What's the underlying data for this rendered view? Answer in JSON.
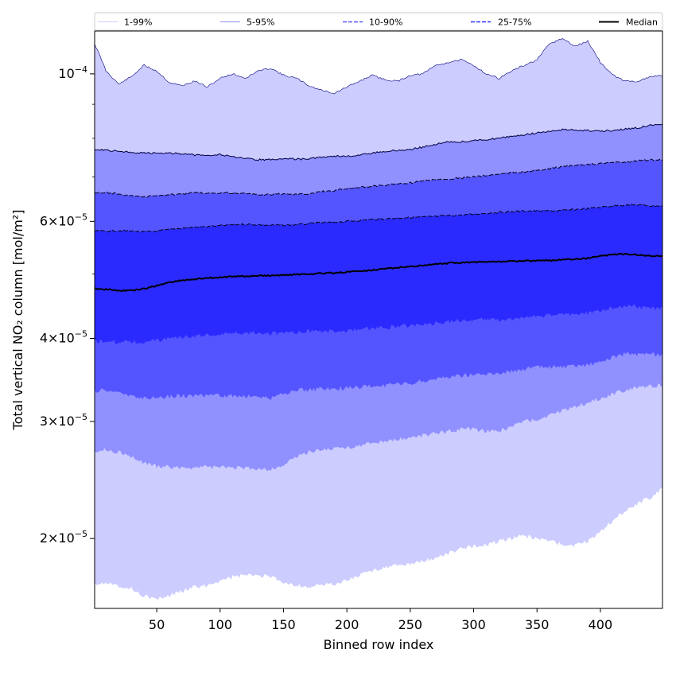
{
  "chart_data": {
    "type": "area",
    "title": "",
    "xlabel": "Binned row index",
    "ylabel": "Total vertical NO₂ column [mol/m²]",
    "xlim": [
      1,
      449
    ],
    "ylim": [
      1.57e-05,
      0.000116
    ],
    "yscale": "log",
    "x_ticks": [
      50,
      100,
      150,
      200,
      250,
      300,
      350,
      400
    ],
    "y_ticks": [
      {
        "value": 2e-05,
        "mantissa": "2",
        "exponent": "−5"
      },
      {
        "value": 3e-05,
        "mantissa": "3",
        "exponent": "−5"
      },
      {
        "value": 4e-05,
        "mantissa": "4",
        "exponent": "−5"
      },
      {
        "value": 6e-05,
        "mantissa": "6",
        "exponent": "−5"
      },
      {
        "value": 0.0001,
        "mantissa": "",
        "exponent": "−4"
      }
    ],
    "x": [
      1,
      10,
      20,
      30,
      40,
      50,
      60,
      70,
      80,
      90,
      100,
      110,
      120,
      130,
      140,
      150,
      160,
      170,
      180,
      190,
      200,
      210,
      220,
      230,
      240,
      250,
      260,
      270,
      280,
      290,
      300,
      310,
      320,
      330,
      340,
      350,
      360,
      370,
      380,
      390,
      400,
      410,
      420,
      430,
      440,
      449
    ],
    "bands": [
      {
        "name": "1-99%",
        "color": "#ccccff",
        "line_color": "#000080",
        "line_style": "solid",
        "lower": [
          1.71e-05,
          1.72e-05,
          1.7e-05,
          1.68e-05,
          1.64e-05,
          1.62e-05,
          1.64e-05,
          1.67e-05,
          1.69e-05,
          1.7e-05,
          1.73e-05,
          1.75e-05,
          1.76e-05,
          1.76e-05,
          1.75e-05,
          1.72e-05,
          1.7e-05,
          1.69e-05,
          1.7e-05,
          1.71e-05,
          1.73e-05,
          1.76e-05,
          1.79e-05,
          1.81e-05,
          1.82e-05,
          1.83e-05,
          1.85e-05,
          1.87e-05,
          1.9e-05,
          1.93e-05,
          1.95e-05,
          1.96e-05,
          1.98e-05,
          2e-05,
          2.02e-05,
          2e-05,
          1.98e-05,
          1.96e-05,
          1.95e-05,
          1.98e-05,
          2.05e-05,
          2.13e-05,
          2.21e-05,
          2.26e-05,
          2.31e-05,
          2.38e-05
        ],
        "upper": [
          0.000111,
          0.000101,
          9.65e-05,
          9.9e-05,
          0.000103,
          0.000101,
          9.7e-05,
          9.6e-05,
          9.75e-05,
          9.55e-05,
          9.85e-05,
          0.0001,
          9.85e-05,
          0.000101,
          0.000102,
          9.95e-05,
          9.85e-05,
          9.6e-05,
          9.45e-05,
          9.35e-05,
          9.55e-05,
          9.75e-05,
          9.95e-05,
          9.8e-05,
          9.75e-05,
          9.95e-05,
          0.0001,
          0.000103,
          0.000104,
          0.000105,
          0.000103,
          0.0001,
          9.85e-05,
          0.000101,
          0.000103,
          0.000105,
          0.000111,
          0.000113,
          0.00011,
          0.000112,
          0.000104,
          9.95e-05,
          9.75e-05,
          9.75e-05,
          9.9e-05,
          9.95e-05
        ]
      },
      {
        "name": "5-95%",
        "color": "#9090ff",
        "line_color": "#000040",
        "line_style": "solid",
        "lower": [
          2.71e-05,
          2.72e-05,
          2.7e-05,
          2.65e-05,
          2.6e-05,
          2.57e-05,
          2.56e-05,
          2.56e-05,
          2.56e-05,
          2.56e-05,
          2.56e-05,
          2.56e-05,
          2.55e-05,
          2.55e-05,
          2.54e-05,
          2.58e-05,
          2.65e-05,
          2.7e-05,
          2.72e-05,
          2.73e-05,
          2.74e-05,
          2.76e-05,
          2.78e-05,
          2.8e-05,
          2.82e-05,
          2.84e-05,
          2.86e-05,
          2.88e-05,
          2.9e-05,
          2.92e-05,
          2.92e-05,
          2.9e-05,
          2.9e-05,
          2.95e-05,
          3e-05,
          3.02e-05,
          3.06e-05,
          3.12e-05,
          3.16e-05,
          3.2e-05,
          3.25e-05,
          3.3e-05,
          3.35e-05,
          3.38e-05,
          3.39e-05,
          3.4e-05
        ],
        "upper": [
          7.7e-05,
          7.68e-05,
          7.65e-05,
          7.62e-05,
          7.6e-05,
          7.6e-05,
          7.6e-05,
          7.58e-05,
          7.55e-05,
          7.55e-05,
          7.56e-05,
          7.5e-05,
          7.45e-05,
          7.43e-05,
          7.43e-05,
          7.46e-05,
          7.44e-05,
          7.45e-05,
          7.5e-05,
          7.52e-05,
          7.52e-05,
          7.54e-05,
          7.6e-05,
          7.64e-05,
          7.67e-05,
          7.7e-05,
          7.76e-05,
          7.84e-05,
          7.9e-05,
          7.9e-05,
          7.94e-05,
          7.96e-05,
          8e-05,
          8.06e-05,
          8.1e-05,
          8.15e-05,
          8.2e-05,
          8.24e-05,
          8.23e-05,
          8.22e-05,
          8.2e-05,
          8.22e-05,
          8.26e-05,
          8.3e-05,
          8.38e-05,
          8.4e-05
        ]
      },
      {
        "name": "10-90%",
        "color": "#5555ff",
        "line_color": "#000020",
        "line_style": "dashed",
        "lower": [
          3.34e-05,
          3.34e-05,
          3.32e-05,
          3.28e-05,
          3.25e-05,
          3.26e-05,
          3.27e-05,
          3.28e-05,
          3.28e-05,
          3.28e-05,
          3.28e-05,
          3.28e-05,
          3.27e-05,
          3.27e-05,
          3.25e-05,
          3.3e-05,
          3.34e-05,
          3.35e-05,
          3.36e-05,
          3.36e-05,
          3.37e-05,
          3.38e-05,
          3.39e-05,
          3.4e-05,
          3.41e-05,
          3.42e-05,
          3.45e-05,
          3.48e-05,
          3.5e-05,
          3.52e-05,
          3.53e-05,
          3.53e-05,
          3.55e-05,
          3.57e-05,
          3.6e-05,
          3.62e-05,
          3.62e-05,
          3.62e-05,
          3.63e-05,
          3.65e-05,
          3.68e-05,
          3.75e-05,
          3.8e-05,
          3.78e-05,
          3.78e-05,
          3.78e-05
        ],
        "upper": [
          6.62e-05,
          6.62e-05,
          6.6e-05,
          6.55e-05,
          6.53e-05,
          6.55e-05,
          6.58e-05,
          6.6e-05,
          6.62e-05,
          6.62e-05,
          6.62e-05,
          6.62e-05,
          6.6e-05,
          6.58e-05,
          6.58e-05,
          6.6e-05,
          6.58e-05,
          6.6e-05,
          6.65e-05,
          6.68e-05,
          6.72e-05,
          6.75e-05,
          6.78e-05,
          6.8e-05,
          6.83e-05,
          6.86e-05,
          6.9e-05,
          6.93e-05,
          6.95e-05,
          6.97e-05,
          7e-05,
          7.03e-05,
          7.07e-05,
          7.1e-05,
          7.12e-05,
          7.15e-05,
          7.2e-05,
          7.25e-05,
          7.28e-05,
          7.3e-05,
          7.33e-05,
          7.35e-05,
          7.38e-05,
          7.4e-05,
          7.42e-05,
          7.42e-05
        ]
      },
      {
        "name": "25-75%",
        "color": "#2a2aff",
        "line_color": "#000020",
        "line_style": "dashed",
        "lower": [
          3.96e-05,
          3.96e-05,
          3.95e-05,
          3.96e-05,
          3.94e-05,
          3.97e-05,
          4e-05,
          4.02e-05,
          4.03e-05,
          4.05e-05,
          4.06e-05,
          4.07e-05,
          4.08e-05,
          4.09e-05,
          4.07e-05,
          4.07e-05,
          4.08e-05,
          4.1e-05,
          4.1e-05,
          4.1e-05,
          4.11e-05,
          4.13e-05,
          4.15e-05,
          4.15e-05,
          4.17e-05,
          4.18e-05,
          4.2e-05,
          4.22e-05,
          4.24e-05,
          4.26e-05,
          4.27e-05,
          4.27e-05,
          4.27e-05,
          4.28e-05,
          4.3e-05,
          4.32e-05,
          4.33e-05,
          4.35e-05,
          4.36e-05,
          4.37e-05,
          4.4e-05,
          4.45e-05,
          4.48e-05,
          4.46e-05,
          4.44e-05,
          4.44e-05
        ],
        "upper": [
          5.8e-05,
          5.8e-05,
          5.81e-05,
          5.8e-05,
          5.78e-05,
          5.8e-05,
          5.83e-05,
          5.86e-05,
          5.88e-05,
          5.89e-05,
          5.91e-05,
          5.93e-05,
          5.94e-05,
          5.93e-05,
          5.92e-05,
          5.92e-05,
          5.93e-05,
          5.95e-05,
          5.97e-05,
          5.98e-05,
          6e-05,
          6.02e-05,
          6.04e-05,
          6.05e-05,
          6.07e-05,
          6.08e-05,
          6.09e-05,
          6.1e-05,
          6.12e-05,
          6.13e-05,
          6.15e-05,
          6.17e-05,
          6.19e-05,
          6.2e-05,
          6.22e-05,
          6.22e-05,
          6.22e-05,
          6.23e-05,
          6.25e-05,
          6.27e-05,
          6.3e-05,
          6.33e-05,
          6.35e-05,
          6.35e-05,
          6.33e-05,
          6.33e-05
        ]
      }
    ],
    "series": [
      {
        "name": "Median",
        "color": "#000000",
        "values": [
          4.75e-05,
          4.74e-05,
          4.72e-05,
          4.72e-05,
          4.75e-05,
          4.8e-05,
          4.86e-05,
          4.89e-05,
          4.91e-05,
          4.93e-05,
          4.94e-05,
          4.96e-05,
          4.96e-05,
          4.97e-05,
          4.97e-05,
          4.98e-05,
          4.99e-05,
          5e-05,
          5.01e-05,
          5.02e-05,
          5.03e-05,
          5.05e-05,
          5.07e-05,
          5.09e-05,
          5.11e-05,
          5.13e-05,
          5.15e-05,
          5.17e-05,
          5.19e-05,
          5.2e-05,
          5.21e-05,
          5.22e-05,
          5.22e-05,
          5.23e-05,
          5.23e-05,
          5.24e-05,
          5.24e-05,
          5.25e-05,
          5.26e-05,
          5.28e-05,
          5.32e-05,
          5.35e-05,
          5.36e-05,
          5.34e-05,
          5.32e-05,
          5.32e-05
        ]
      }
    ],
    "legend": [
      {
        "label": "1-99%",
        "color": "#ccccff",
        "style": "solid"
      },
      {
        "label": "5-95%",
        "color": "#9090ff",
        "style": "solid"
      },
      {
        "label": "10-90%",
        "color": "#5555ff",
        "style": "dashed"
      },
      {
        "label": "25-75%",
        "color": "#2a2aff",
        "style": "dashed"
      },
      {
        "label": "Median",
        "color": "#000000",
        "style": "solid"
      }
    ],
    "legend_position": "top"
  }
}
